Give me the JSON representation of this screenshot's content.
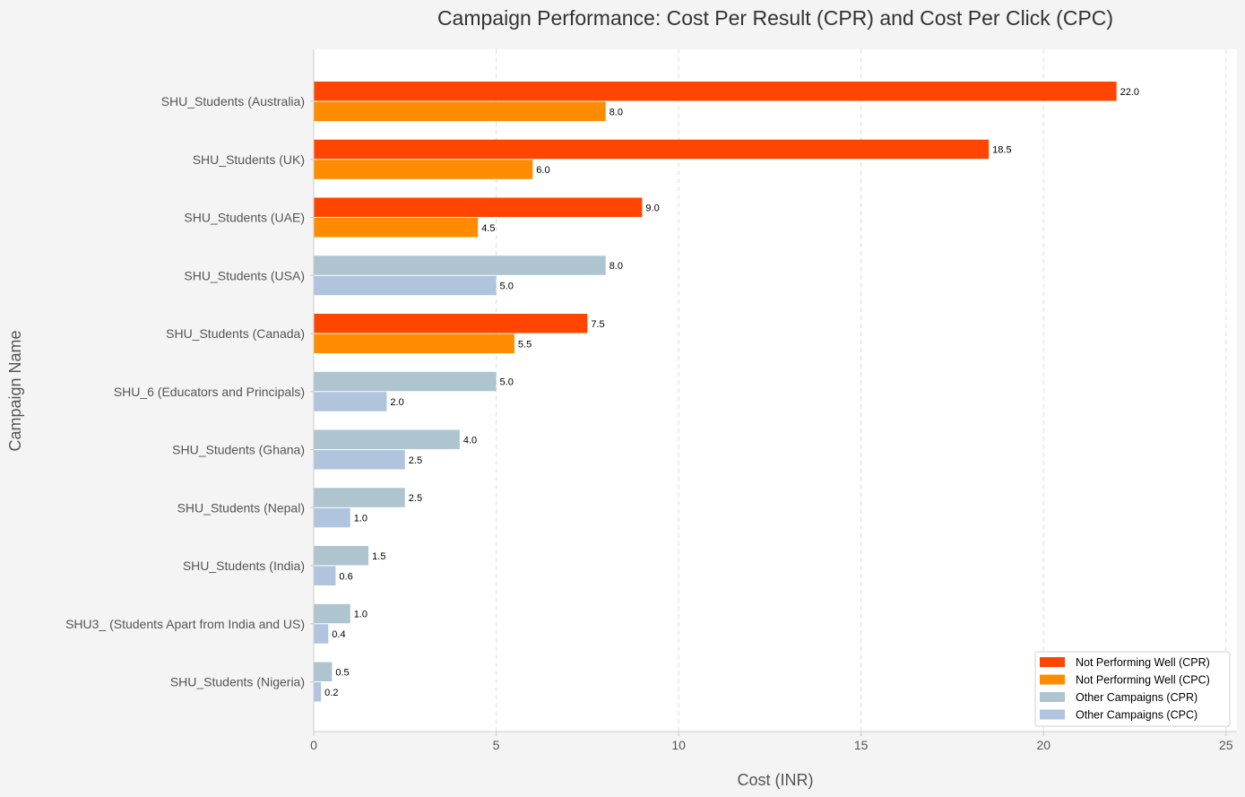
{
  "chart_data": {
    "type": "bar",
    "orientation": "horizontal",
    "title": "Campaign Performance: Cost Per Result (CPR) and Cost Per Click (CPC)",
    "xlabel": "Cost (INR)",
    "ylabel": "Campaign Name",
    "xlim": [
      0,
      25.3
    ],
    "xticks": [
      "0",
      "5",
      "10",
      "15",
      "20",
      "25"
    ],
    "grid": "vertical dashed",
    "legend_position": "bottom-right",
    "categories": [
      "SHU_Students (Australia)",
      "SHU_Students (UK)",
      "SHU_Students (UAE)",
      "SHU_Students (USA)",
      "SHU_Students (Canada)",
      "SHU_6 (Educators and Principals)",
      "SHU_Students (Ghana)",
      "SHU_Students (Nepal)",
      "SHU_Students (India)",
      "SHU3_ (Students Apart from India and US)",
      "SHU_Students (Nigeria)"
    ],
    "not_performing_well": [
      true,
      true,
      true,
      false,
      true,
      false,
      false,
      false,
      false,
      false,
      false
    ],
    "series": [
      {
        "metric": "CPR",
        "values": [
          22.0,
          18.5,
          9.0,
          8.0,
          7.5,
          5.0,
          4.0,
          2.5,
          1.5,
          1.0,
          0.5
        ],
        "labels": [
          "22.0",
          "18.5",
          "9.0",
          "8.0",
          "7.5",
          "5.0",
          "4.0",
          "2.5",
          "1.5",
          "1.0",
          "0.5"
        ]
      },
      {
        "metric": "CPC",
        "values": [
          8.0,
          6.0,
          4.5,
          5.0,
          5.5,
          2.0,
          2.5,
          1.0,
          0.6,
          0.4,
          0.2
        ],
        "labels": [
          "8.0",
          "6.0",
          "4.5",
          "5.0",
          "5.5",
          "2.0",
          "2.5",
          "1.0",
          "0.6",
          "0.4",
          "0.2"
        ]
      }
    ],
    "colors": {
      "not_performing_cpr": "#ff4500",
      "not_performing_cpc": "#ff8c00",
      "other_cpr": "#aec4cf",
      "other_cpc": "#b0c4de"
    },
    "legend": [
      {
        "label": "Not Performing Well (CPR)",
        "color_key": "not_performing_cpr"
      },
      {
        "label": "Not Performing Well (CPC)",
        "color_key": "not_performing_cpc"
      },
      {
        "label": "Other Campaigns (CPR)",
        "color_key": "other_cpr"
      },
      {
        "label": "Other Campaigns (CPC)",
        "color_key": "other_cpc"
      }
    ]
  }
}
